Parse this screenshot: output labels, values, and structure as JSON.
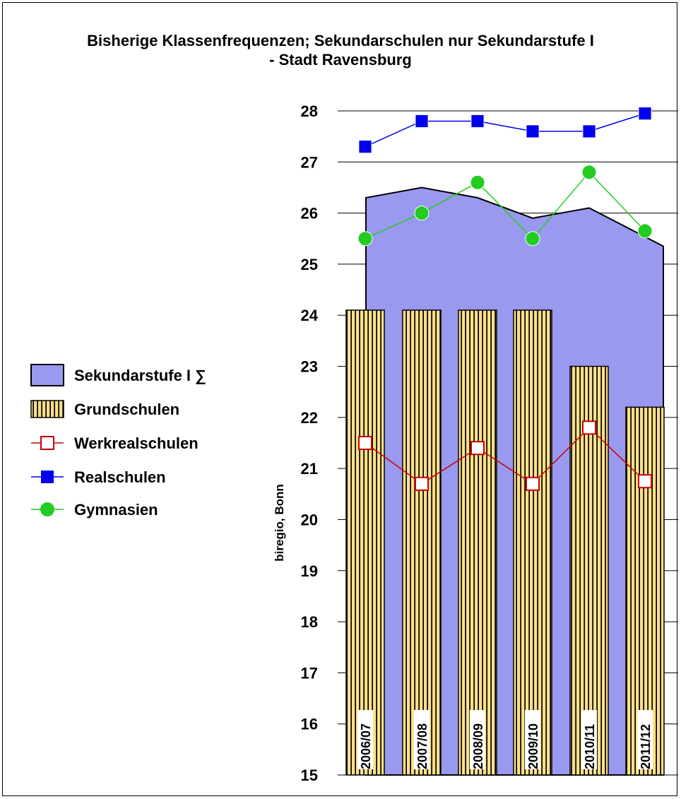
{
  "chart_data": {
    "type": "bar",
    "title_lines": [
      "Bisherige Klassenfrequenzen; Sekundarschulen nur Sekundarstufe I",
      "- Stadt Ravensburg"
    ],
    "ylabel": "biregio, Bonn",
    "ylim": [
      15,
      28
    ],
    "yticks": [
      15,
      16,
      17,
      18,
      19,
      20,
      21,
      22,
      23,
      24,
      25,
      26,
      27,
      28
    ],
    "grid": true,
    "legend_position": "left",
    "categories": [
      "2006/07",
      "2007/08",
      "2008/09",
      "2009/10",
      "2010/11",
      "2011/12"
    ],
    "series": [
      {
        "name": "Sekundarstufe I ∑",
        "kind": "area",
        "color": "#9999f0",
        "values": [
          26.3,
          26.5,
          26.3,
          25.9,
          26.1,
          25.35
        ]
      },
      {
        "name": "Grundschulen",
        "kind": "bar",
        "color": "#ffe08a",
        "values": [
          24.1,
          24.1,
          24.1,
          24.1,
          23.0,
          22.2
        ]
      },
      {
        "name": "Werkrealschulen",
        "kind": "line",
        "marker": "open-square",
        "color": "#cc0000",
        "values": [
          21.5,
          20.7,
          21.4,
          20.7,
          21.8,
          20.75
        ]
      },
      {
        "name": "Realschulen",
        "kind": "line",
        "marker": "filled-square",
        "color": "#0000ee",
        "values": [
          27.3,
          27.8,
          27.8,
          27.6,
          27.6,
          27.95
        ]
      },
      {
        "name": "Gymnasien",
        "kind": "line",
        "marker": "filled-circle",
        "color": "#22cc22",
        "values": [
          25.5,
          26.0,
          26.6,
          25.5,
          26.8,
          25.65
        ]
      }
    ]
  }
}
